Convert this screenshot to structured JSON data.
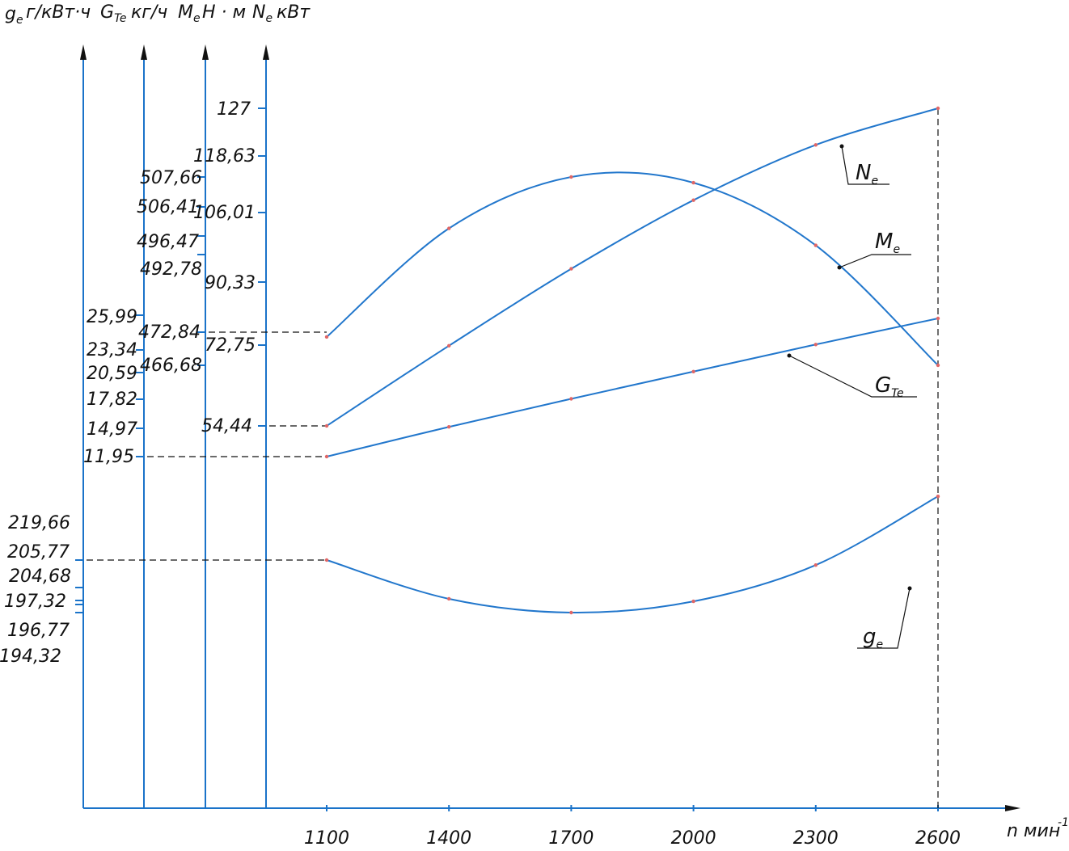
{
  "colors": {
    "curve": "#2277cc",
    "axis": "#1a73c9",
    "point": "#e06666",
    "text": "#111111"
  },
  "header": {
    "ge_sym": "g",
    "ge_sub": "e",
    "ge_unit": "г/кВт·ч",
    "gt_sym": "G",
    "gt_sub": "Te",
    "gt_unit": "кг/ч",
    "me_sym": "M",
    "me_sub": "e",
    "me_unit": "Н · м",
    "ne_sym": "N",
    "ne_sub": "e",
    "ne_unit": "кВт"
  },
  "x_axis_label": "n мин",
  "x_axis_exp": "-1",
  "chart_data": {
    "type": "line",
    "x": [
      1100,
      1400,
      1700,
      2000,
      2300,
      2600
    ],
    "x_tick_labels": [
      "1100",
      "1400",
      "1700",
      "2000",
      "2300",
      "2600"
    ],
    "xlim": [
      1100,
      2600
    ],
    "grid": false,
    "series": [
      {
        "name": "N",
        "sub": "e",
        "values": [
          54.44,
          72.75,
          90.33,
          106.01,
          118.63,
          127
        ],
        "axis": "Ne"
      },
      {
        "name": "M",
        "sub": "e",
        "values": [
          472.84,
          496.47,
          507.66,
          506.41,
          492.78,
          466.68
        ],
        "axis": "Me"
      },
      {
        "name": "G",
        "sub": "Te",
        "values": [
          11.95,
          14.97,
          17.82,
          20.59,
          23.34,
          25.99
        ],
        "axis": "GTe"
      },
      {
        "name": "g",
        "sub": "e",
        "values": [
          205.77,
          197.32,
          194.32,
          196.77,
          204.68,
          219.66
        ],
        "axis": "ge"
      }
    ],
    "axes": {
      "ge": {
        "tick_labels": [
          "219,66",
          "205,77",
          "204,68",
          "197,32",
          "196,77",
          "194,32"
        ]
      },
      "GTe": {
        "tick_labels": [
          "25,99",
          "23,34",
          "20,59",
          "17,82",
          "14,97",
          "11,95"
        ]
      },
      "Me": {
        "tick_labels": [
          "507,66",
          "506,41",
          "496,47",
          "492,78",
          "472,84",
          "466,68"
        ]
      },
      "Ne": {
        "tick_labels": [
          "127",
          "118,63",
          "106,01",
          "90,33",
          "72,75",
          "54,44"
        ]
      }
    }
  }
}
